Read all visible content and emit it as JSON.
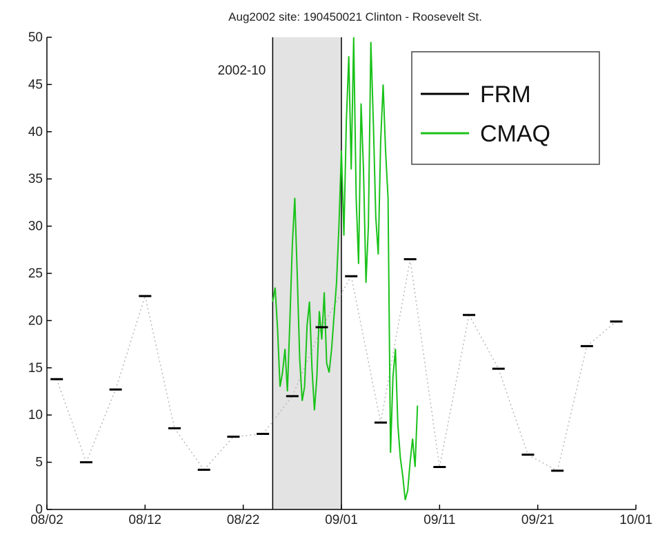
{
  "chart_data": {
    "type": "line",
    "title": "Aug2002 site: 190450021 Clinton - Roosevelt St.",
    "xlabel": "",
    "ylabel": "",
    "ylim": [
      0,
      50
    ],
    "xlim": [
      "2002-08-02",
      "2002-10-01"
    ],
    "x_ticks": [
      "08/02",
      "08/12",
      "08/22",
      "09/01",
      "09/11",
      "09/21",
      "10/01"
    ],
    "y_ticks": [
      "0",
      "5",
      "10",
      "15",
      "20",
      "25",
      "30",
      "35",
      "40",
      "45",
      "50"
    ],
    "grid": false,
    "legend": {
      "position": "top-right",
      "entries": [
        "FRM",
        "CMAQ"
      ]
    },
    "highlight": {
      "label": "2002-10",
      "start": "2002-08-25",
      "end": "2002-09-01",
      "color": "#e3e3e3"
    },
    "colors": {
      "FRM": "#000000",
      "CMAQ": "#19c219",
      "connector": "#b8b8b8",
      "highlight_edge": "#000000"
    },
    "series": [
      {
        "name": "FRM",
        "style": "short horizontal marks joined by dotted lines",
        "x": [
          "2002-08-03",
          "2002-08-06",
          "2002-08-09",
          "2002-08-12",
          "2002-08-15",
          "2002-08-18",
          "2002-08-21",
          "2002-08-24",
          "2002-08-27",
          "2002-08-30",
          "2002-09-02",
          "2002-09-05",
          "2002-09-08",
          "2002-09-11",
          "2002-09-14",
          "2002-09-17",
          "2002-09-20",
          "2002-09-23",
          "2002-09-26",
          "2002-09-29"
        ],
        "values": [
          13.8,
          5.0,
          12.7,
          22.6,
          8.6,
          4.2,
          7.7,
          8.0,
          12.0,
          19.3,
          24.7,
          9.2,
          26.5,
          4.5,
          20.6,
          14.9,
          5.8,
          4.1,
          17.3,
          19.9
        ]
      },
      {
        "name": "CMAQ",
        "style": "hourly line",
        "x_start": "2002-08-25",
        "step_hours": 6,
        "values": [
          22.0,
          23.5,
          19.0,
          13.0,
          14.5,
          17.0,
          12.5,
          20.0,
          28.0,
          33.0,
          25.0,
          16.0,
          11.5,
          13.0,
          19.5,
          22.0,
          15.0,
          10.5,
          14.0,
          21.0,
          18.0,
          23.0,
          15.5,
          14.5,
          17.0,
          20.5,
          24.0,
          30.0,
          38.0,
          29.0,
          41.0,
          48.0,
          36.0,
          50.0,
          33.0,
          26.0,
          43.0,
          36.0,
          24.0,
          30.0,
          49.5,
          41.0,
          31.0,
          27.0,
          39.0,
          45.0,
          38.0,
          33.0,
          6.0,
          14.0,
          17.0,
          9.0,
          5.5,
          3.5,
          1.0,
          2.0,
          5.0,
          7.5,
          4.5,
          11.0
        ]
      }
    ]
  }
}
